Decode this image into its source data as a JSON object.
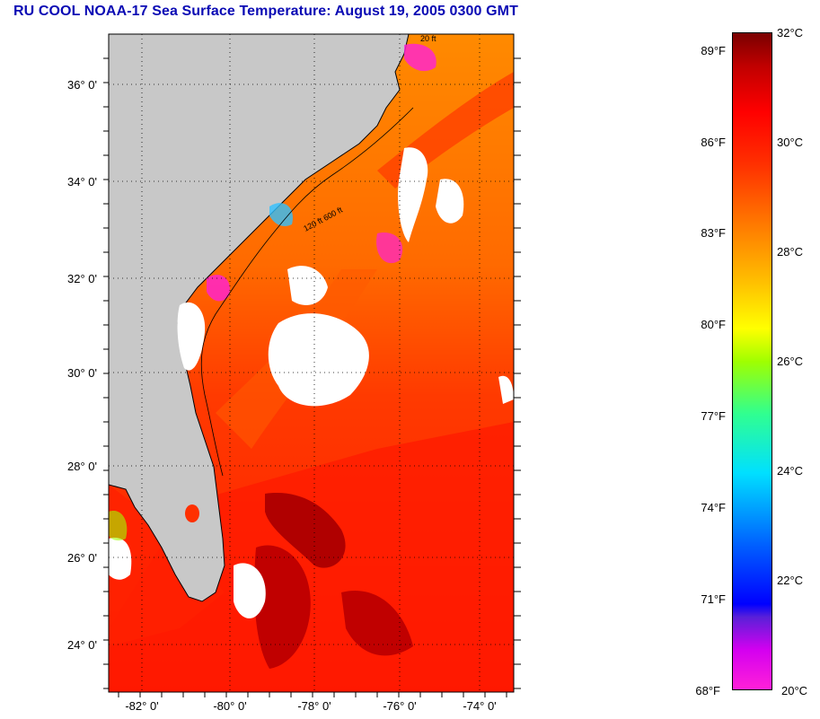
{
  "title": "RU COOL  NOAA-17  Sea Surface Temperature:  August 19, 2005 0300 GMT",
  "map": {
    "lat_labels": [
      "36° 0'",
      "34° 0'",
      "32° 0'",
      "30° 0'",
      "28° 0'",
      "26° 0'",
      "24° 0'"
    ],
    "lon_labels": [
      "-82° 0'",
      "-80° 0'",
      "-78° 0'",
      "-76° 0'",
      "-74° 0'"
    ],
    "contour_labels": [
      "20 ft",
      "120 ft 600 ft"
    ],
    "land_color": "#c8c8c8",
    "cloud_color": "#ffffff"
  },
  "colorbar": {
    "celsius_labels": [
      "32°C",
      "30°C",
      "28°C",
      "26°C",
      "24°C",
      "22°C",
      "20°C"
    ],
    "fahrenheit_labels": [
      "89°F",
      "86°F",
      "83°F",
      "80°F",
      "77°F",
      "74°F",
      "71°F",
      "68°F"
    ]
  }
}
